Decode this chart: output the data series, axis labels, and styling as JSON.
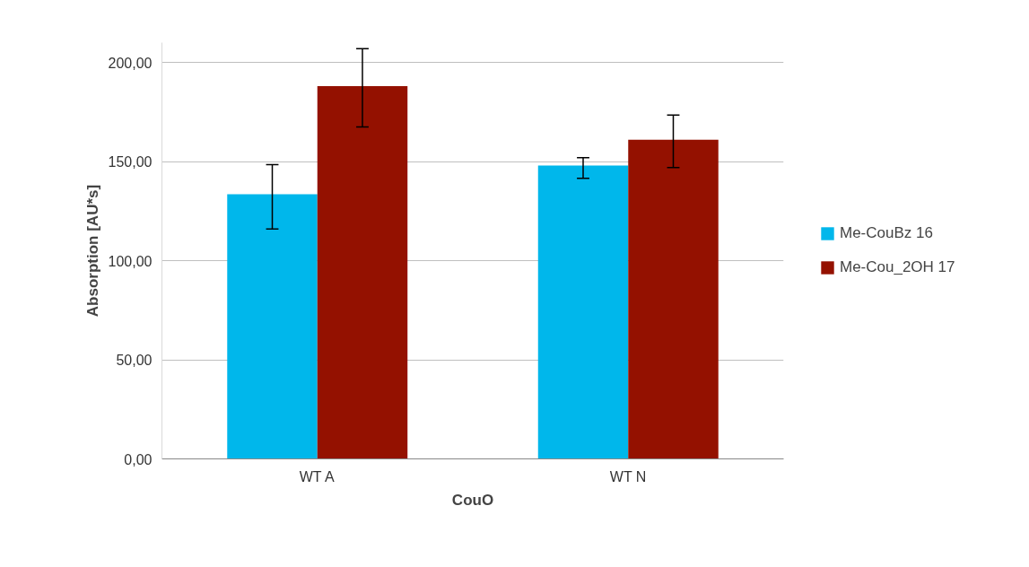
{
  "chart_data": {
    "type": "bar",
    "xlabel": "CouO",
    "ylabel": "Absorption [AU*s]",
    "categories": [
      "WT A",
      "WT N"
    ],
    "series": [
      {
        "name": "Me-CouBz 16",
        "color": "#00b7eb",
        "values": [
          133.5,
          148
        ],
        "errors": [
          [
            116,
            148.5
          ],
          [
            141.5,
            152
          ]
        ]
      },
      {
        "name": "Me-Cou_2OH 17",
        "color": "#941100",
        "values": [
          188,
          161
        ],
        "errors": [
          [
            167.5,
            207
          ],
          [
            147,
            173.5
          ]
        ]
      }
    ],
    "ylim": [
      0,
      210
    ],
    "yticks": [
      {
        "value": 0,
        "label": "0,00"
      },
      {
        "value": 50,
        "label": "50,00"
      },
      {
        "value": 100,
        "label": "100,00"
      },
      {
        "value": 150,
        "label": "150,00"
      },
      {
        "value": 200,
        "label": "200,00"
      }
    ],
    "grid": "y",
    "legend": "right"
  }
}
